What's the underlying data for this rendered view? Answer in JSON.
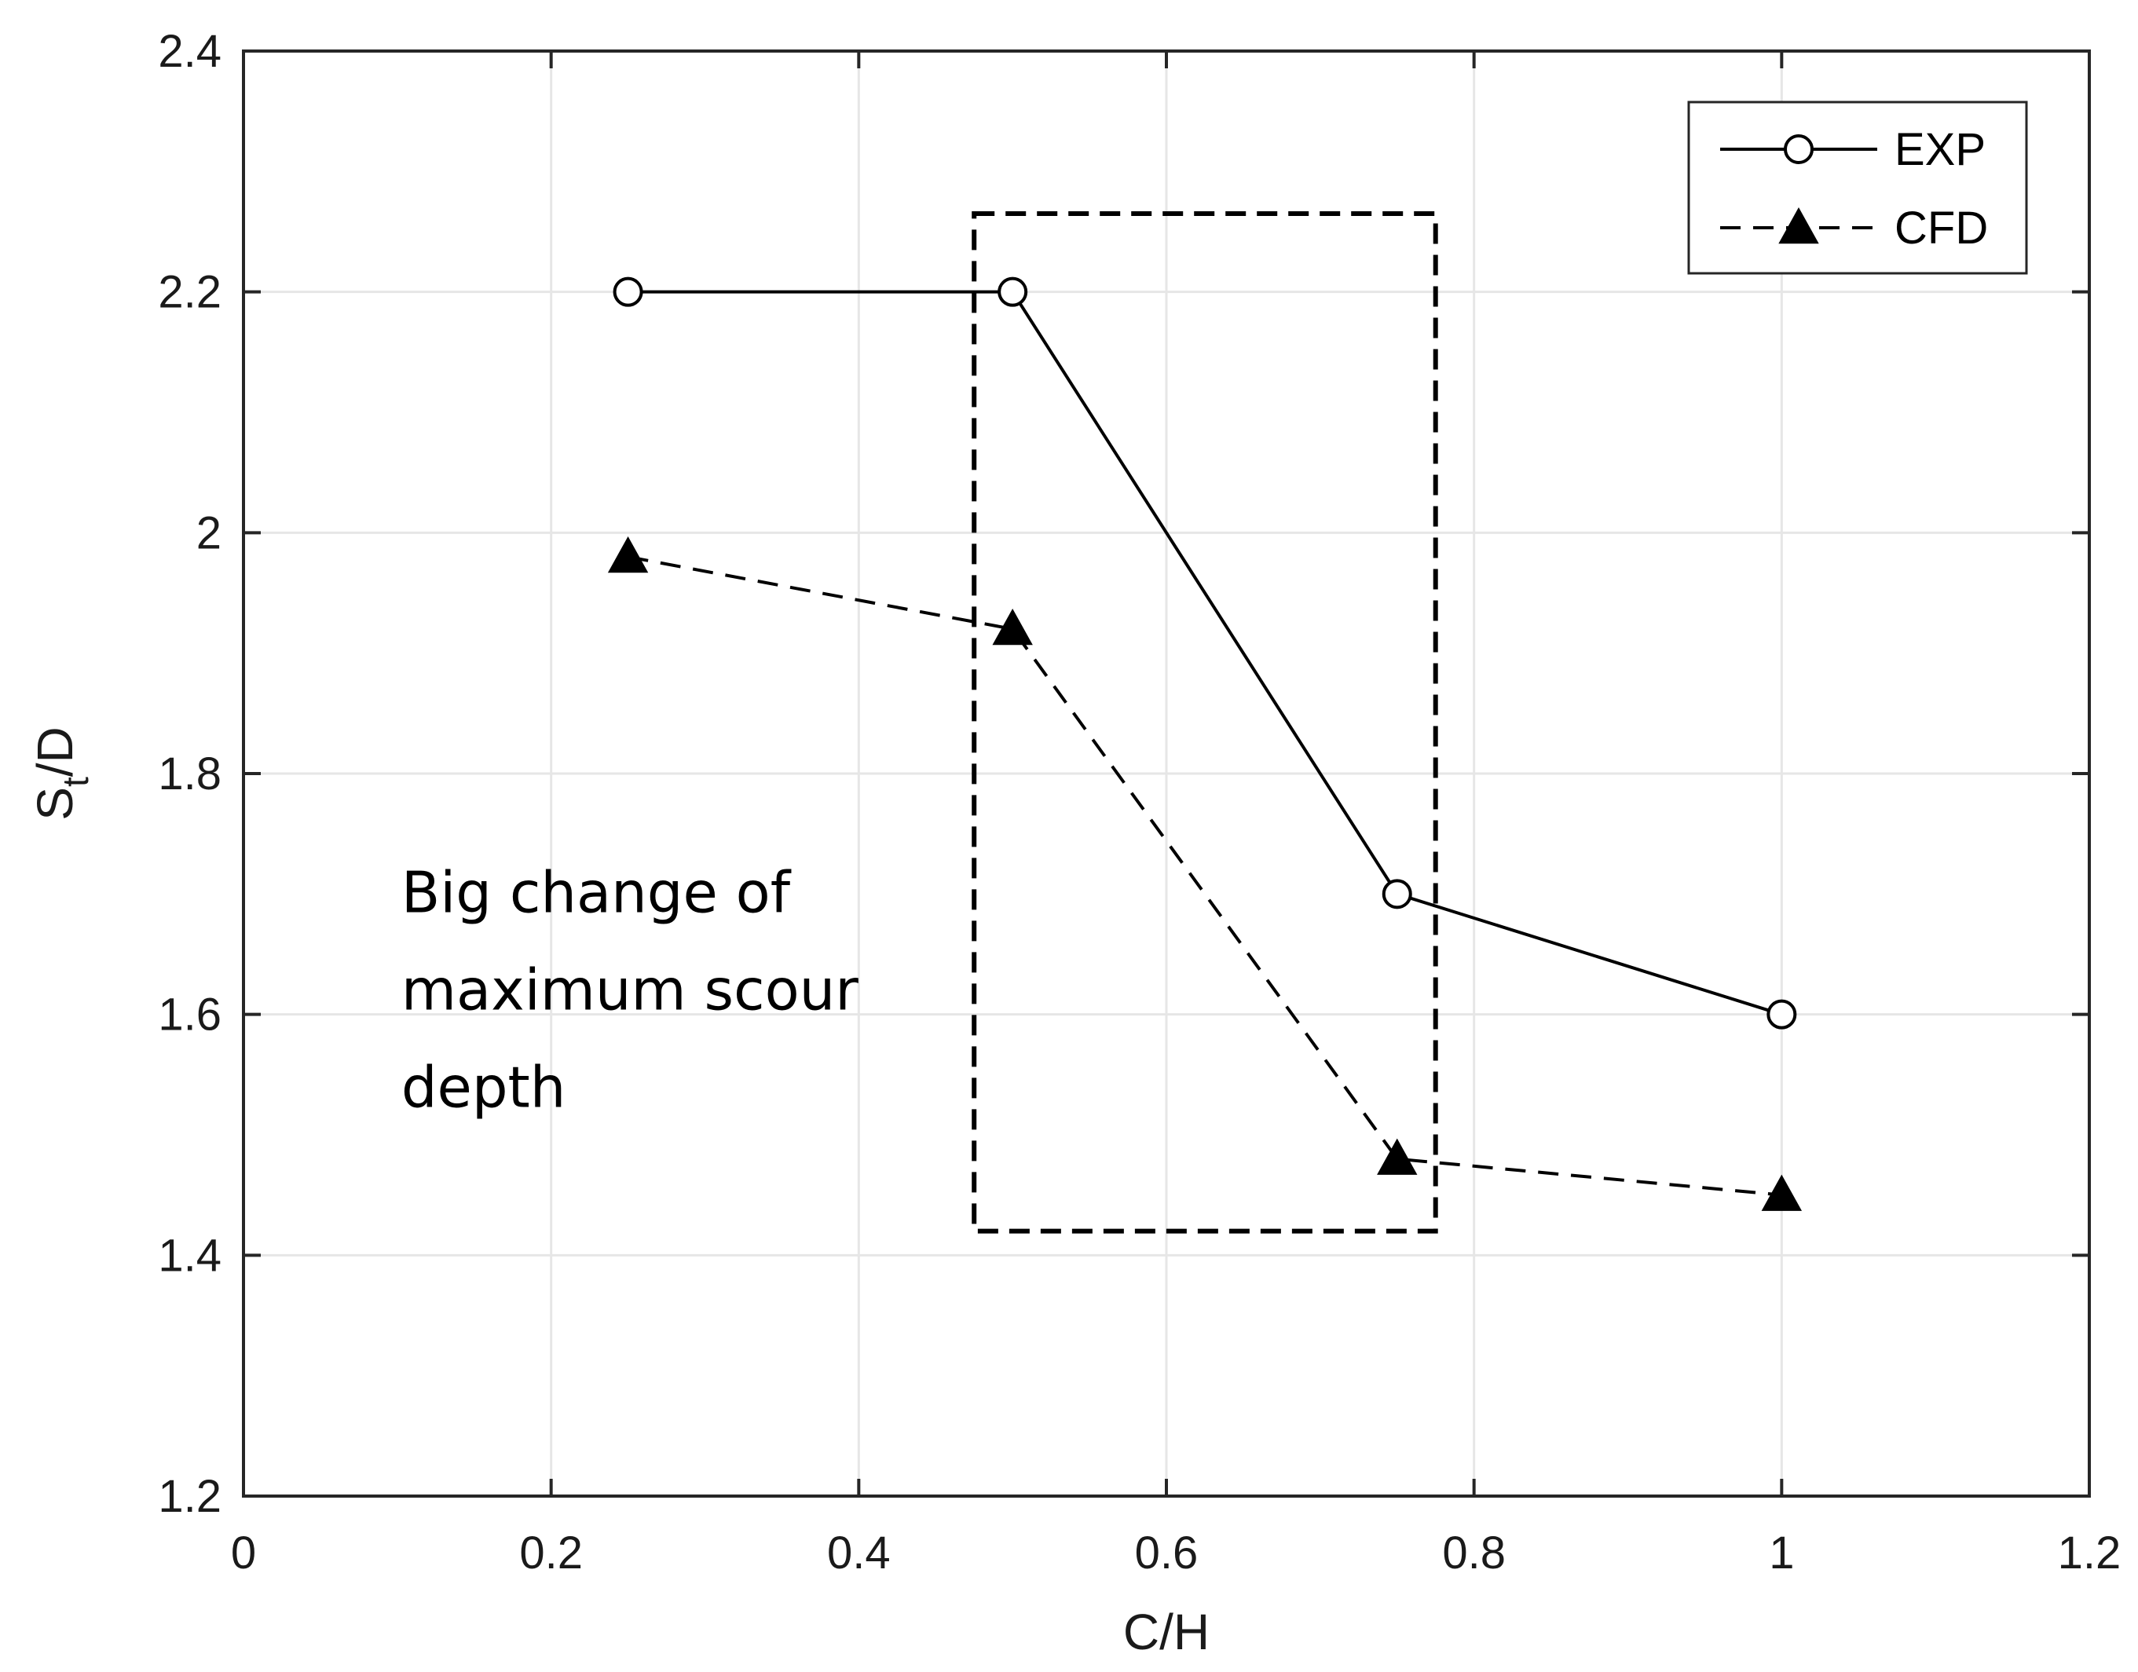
{
  "chart_data": {
    "type": "line",
    "title": "",
    "xlabel": "C/H",
    "ylabel_main": "S",
    "ylabel_sub": "t",
    "ylabel_tail": "/D",
    "xlim": [
      0,
      1.2
    ],
    "ylim": [
      1.2,
      2.4
    ],
    "xticks": [
      0,
      0.2,
      0.4,
      0.6,
      0.8,
      1,
      1.2
    ],
    "yticks": [
      1.2,
      1.4,
      1.6,
      1.8,
      2,
      2.2,
      2.4
    ],
    "xtick_labels": [
      "0",
      "0.2",
      "0.4",
      "0.6",
      "0.8",
      "1",
      "1.2"
    ],
    "ytick_labels": [
      "1.2",
      "1.4",
      "1.6",
      "1.8",
      "2",
      "2.2",
      "2.4"
    ],
    "grid": true,
    "legend_position": "top-right",
    "series": [
      {
        "name": "EXP",
        "style": "solid",
        "marker": "open-circle",
        "color": "#000000",
        "x": [
          0.25,
          0.5,
          0.75,
          1.0
        ],
        "y": [
          2.2,
          2.2,
          1.7,
          1.6
        ]
      },
      {
        "name": "CFD",
        "style": "dashed",
        "marker": "filled-triangle",
        "color": "#000000",
        "x": [
          0.25,
          0.5,
          0.75,
          1.0
        ],
        "y": [
          1.98,
          1.92,
          1.48,
          1.45
        ]
      }
    ],
    "highlight_box": {
      "x_range": [
        0.475,
        0.775
      ],
      "y_range": [
        1.42,
        2.265
      ]
    },
    "annotation": {
      "lines": [
        "Big change of",
        "maximum scour",
        "depth"
      ],
      "x": 0.1,
      "y": 1.685
    }
  },
  "colors": {
    "axis": "#262626",
    "grid": "#e6e6e6",
    "line": "#000000",
    "background": "#ffffff"
  }
}
